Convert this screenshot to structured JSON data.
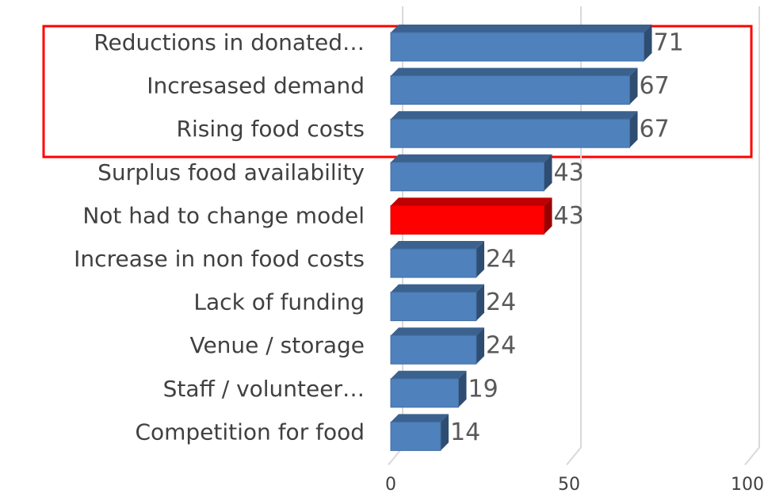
{
  "chart_data": {
    "type": "bar",
    "orientation": "horizontal",
    "categories": [
      "Reductions in donated…",
      "Incresased demand",
      "Rising food costs",
      "Surplus food availability",
      "Not had to change model",
      "Increase in non food costs",
      "Lack of funding",
      "Venue / storage",
      "Staff / volunteer…",
      "Competition for food"
    ],
    "values": [
      71,
      67,
      67,
      43,
      43,
      24,
      24,
      24,
      19,
      14
    ],
    "colors": [
      "#4f81bd",
      "#4f81bd",
      "#4f81bd",
      "#4f81bd",
      "#ff0000",
      "#4f81bd",
      "#4f81bd",
      "#4f81bd",
      "#4f81bd",
      "#4f81bd"
    ],
    "xlim": [
      0,
      100
    ],
    "xticks": [
      0,
      50,
      100
    ],
    "grid": true
  }
}
